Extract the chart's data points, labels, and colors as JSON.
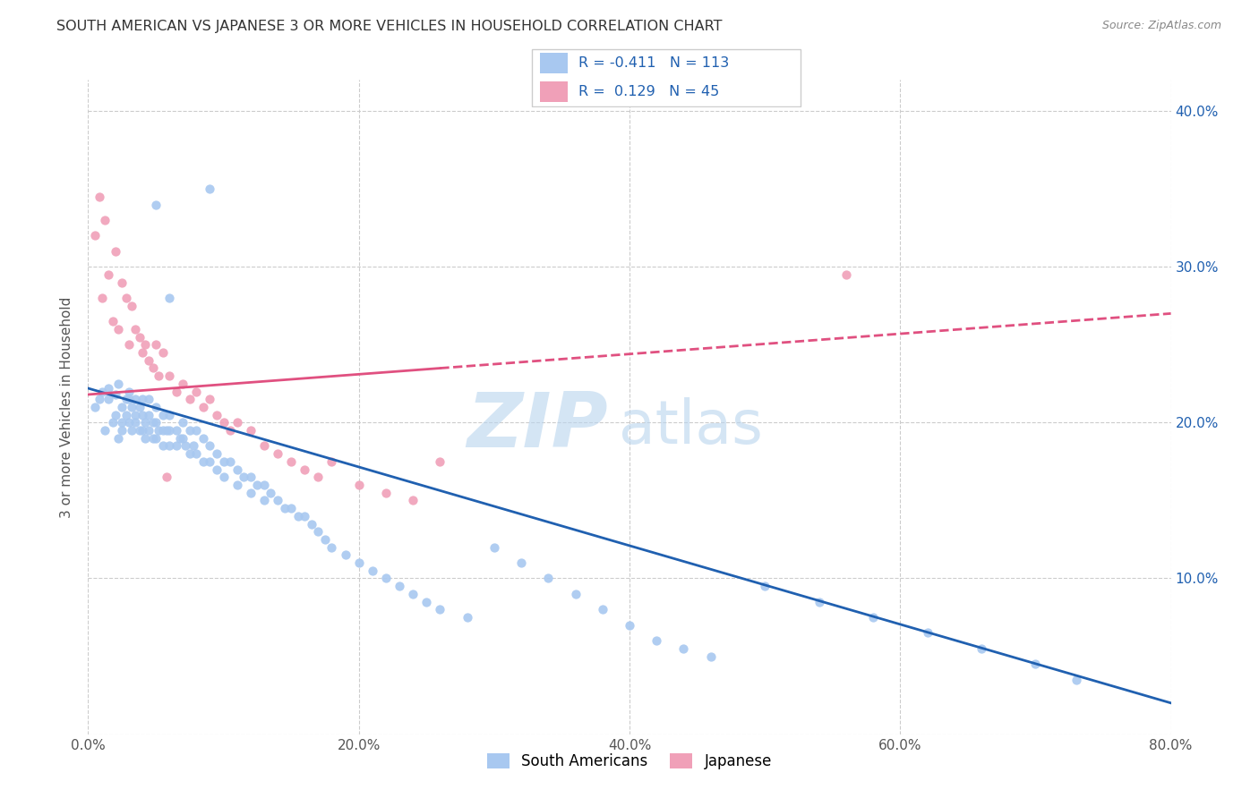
{
  "title": "SOUTH AMERICAN VS JAPANESE 3 OR MORE VEHICLES IN HOUSEHOLD CORRELATION CHART",
  "source": "Source: ZipAtlas.com",
  "ylabel": "3 or more Vehicles in Household",
  "xlim": [
    0.0,
    0.8
  ],
  "ylim": [
    0.0,
    0.42
  ],
  "xticks": [
    0.0,
    0.2,
    0.4,
    0.6,
    0.8
  ],
  "xticklabels": [
    "0.0%",
    "20.0%",
    "40.0%",
    "60.0%",
    "80.0%"
  ],
  "yticks": [
    0.0,
    0.1,
    0.2,
    0.3,
    0.4
  ],
  "yticklabels": [
    "",
    "10.0%",
    "20.0%",
    "30.0%",
    "40.0%"
  ],
  "blue_color": "#a8c8f0",
  "pink_color": "#f0a0b8",
  "blue_line_color": "#2060b0",
  "pink_line_color": "#e05080",
  "R_blue": -0.411,
  "N_blue": 113,
  "R_pink": 0.129,
  "N_pink": 45,
  "watermark_zip": "ZIP",
  "watermark_atlas": "atlas",
  "legend_label_blue": "South Americans",
  "legend_label_pink": "Japanese",
  "blue_line_x0": 0.0,
  "blue_line_y0": 0.222,
  "blue_line_x1": 0.8,
  "blue_line_y1": 0.02,
  "pink_line_x0": 0.0,
  "pink_line_y0": 0.218,
  "pink_line_x1": 0.8,
  "pink_line_y1": 0.27,
  "sa_x": [
    0.005,
    0.008,
    0.01,
    0.012,
    0.015,
    0.015,
    0.018,
    0.02,
    0.02,
    0.022,
    0.022,
    0.025,
    0.025,
    0.025,
    0.028,
    0.028,
    0.03,
    0.03,
    0.03,
    0.032,
    0.032,
    0.035,
    0.035,
    0.035,
    0.038,
    0.038,
    0.04,
    0.04,
    0.04,
    0.042,
    0.042,
    0.045,
    0.045,
    0.045,
    0.048,
    0.048,
    0.05,
    0.05,
    0.05,
    0.052,
    0.055,
    0.055,
    0.055,
    0.058,
    0.06,
    0.06,
    0.06,
    0.065,
    0.065,
    0.068,
    0.07,
    0.07,
    0.072,
    0.075,
    0.075,
    0.078,
    0.08,
    0.08,
    0.085,
    0.085,
    0.09,
    0.09,
    0.095,
    0.095,
    0.1,
    0.1,
    0.105,
    0.11,
    0.11,
    0.115,
    0.12,
    0.12,
    0.125,
    0.13,
    0.13,
    0.135,
    0.14,
    0.145,
    0.15,
    0.155,
    0.16,
    0.165,
    0.17,
    0.175,
    0.18,
    0.19,
    0.2,
    0.21,
    0.22,
    0.23,
    0.24,
    0.25,
    0.26,
    0.28,
    0.3,
    0.32,
    0.34,
    0.36,
    0.38,
    0.4,
    0.42,
    0.44,
    0.46,
    0.5,
    0.54,
    0.58,
    0.62,
    0.66,
    0.7,
    0.73,
    0.05,
    0.06,
    0.09
  ],
  "sa_y": [
    0.21,
    0.215,
    0.22,
    0.195,
    0.215,
    0.222,
    0.2,
    0.218,
    0.205,
    0.19,
    0.225,
    0.21,
    0.2,
    0.195,
    0.215,
    0.205,
    0.22,
    0.215,
    0.2,
    0.21,
    0.195,
    0.215,
    0.205,
    0.2,
    0.21,
    0.195,
    0.215,
    0.205,
    0.195,
    0.2,
    0.19,
    0.215,
    0.205,
    0.195,
    0.2,
    0.19,
    0.21,
    0.2,
    0.19,
    0.195,
    0.205,
    0.195,
    0.185,
    0.195,
    0.205,
    0.195,
    0.185,
    0.195,
    0.185,
    0.19,
    0.2,
    0.19,
    0.185,
    0.195,
    0.18,
    0.185,
    0.195,
    0.18,
    0.19,
    0.175,
    0.185,
    0.175,
    0.18,
    0.17,
    0.175,
    0.165,
    0.175,
    0.17,
    0.16,
    0.165,
    0.165,
    0.155,
    0.16,
    0.16,
    0.15,
    0.155,
    0.15,
    0.145,
    0.145,
    0.14,
    0.14,
    0.135,
    0.13,
    0.125,
    0.12,
    0.115,
    0.11,
    0.105,
    0.1,
    0.095,
    0.09,
    0.085,
    0.08,
    0.075,
    0.12,
    0.11,
    0.1,
    0.09,
    0.08,
    0.07,
    0.06,
    0.055,
    0.05,
    0.095,
    0.085,
    0.075,
    0.065,
    0.055,
    0.045,
    0.035,
    0.34,
    0.28,
    0.35
  ],
  "jp_x": [
    0.005,
    0.008,
    0.01,
    0.012,
    0.015,
    0.018,
    0.02,
    0.022,
    0.025,
    0.028,
    0.03,
    0.032,
    0.035,
    0.038,
    0.04,
    0.042,
    0.045,
    0.048,
    0.05,
    0.052,
    0.055,
    0.058,
    0.06,
    0.065,
    0.07,
    0.075,
    0.08,
    0.085,
    0.09,
    0.095,
    0.1,
    0.105,
    0.11,
    0.12,
    0.13,
    0.14,
    0.15,
    0.16,
    0.17,
    0.18,
    0.2,
    0.22,
    0.24,
    0.26,
    0.56
  ],
  "jp_y": [
    0.32,
    0.345,
    0.28,
    0.33,
    0.295,
    0.265,
    0.31,
    0.26,
    0.29,
    0.28,
    0.25,
    0.275,
    0.26,
    0.255,
    0.245,
    0.25,
    0.24,
    0.235,
    0.25,
    0.23,
    0.245,
    0.165,
    0.23,
    0.22,
    0.225,
    0.215,
    0.22,
    0.21,
    0.215,
    0.205,
    0.2,
    0.195,
    0.2,
    0.195,
    0.185,
    0.18,
    0.175,
    0.17,
    0.165,
    0.175,
    0.16,
    0.155,
    0.15,
    0.175,
    0.295
  ]
}
